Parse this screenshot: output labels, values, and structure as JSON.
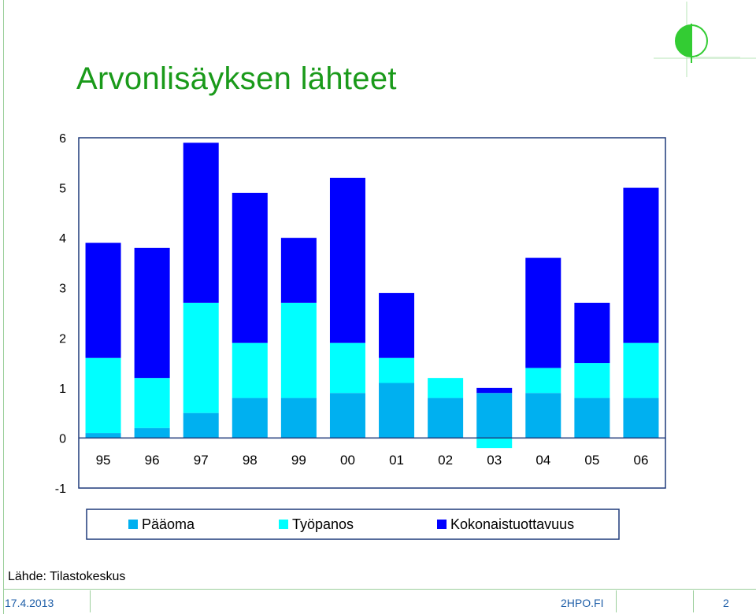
{
  "slide": {
    "title": "Arvonlisäyksen lähteet",
    "source": "Lähde: Tilastokeskus",
    "footer_date": "17.4.2013",
    "footer_site": "2HPO.FI",
    "page_number": "2"
  },
  "colors": {
    "title": "#1a9a1a",
    "paaoma": "#00b0f0",
    "tyopanos": "#00ffff",
    "kokonaistuottavuus": "#0000ff",
    "frame": "#1f3a7a",
    "logo": "#33cc33"
  },
  "chart_data": {
    "type": "bar",
    "stacked": true,
    "categories": [
      "95",
      "96",
      "97",
      "98",
      "99",
      "00",
      "01",
      "02",
      "03",
      "04",
      "05",
      "06"
    ],
    "series": [
      {
        "name": "Pääoma",
        "values": [
          0.1,
          0.2,
          0.5,
          0.8,
          0.8,
          0.9,
          1.1,
          0.8,
          0.9,
          0.9,
          0.8,
          0.8
        ]
      },
      {
        "name": "Työpanos",
        "values": [
          1.5,
          1.0,
          2.2,
          1.1,
          1.9,
          1.0,
          0.5,
          0.4,
          -0.2,
          0.5,
          0.7,
          1.1
        ]
      },
      {
        "name": "Kokonaistuottavuus",
        "values": [
          2.3,
          2.6,
          3.2,
          3.0,
          1.3,
          3.3,
          1.3,
          0.0,
          0.1,
          2.2,
          1.2,
          3.1
        ]
      }
    ],
    "ylim": [
      -1,
      6
    ],
    "yticks": [
      6,
      5,
      4,
      3,
      2,
      1,
      0,
      -1
    ],
    "grid": false,
    "legend": "bottom"
  }
}
